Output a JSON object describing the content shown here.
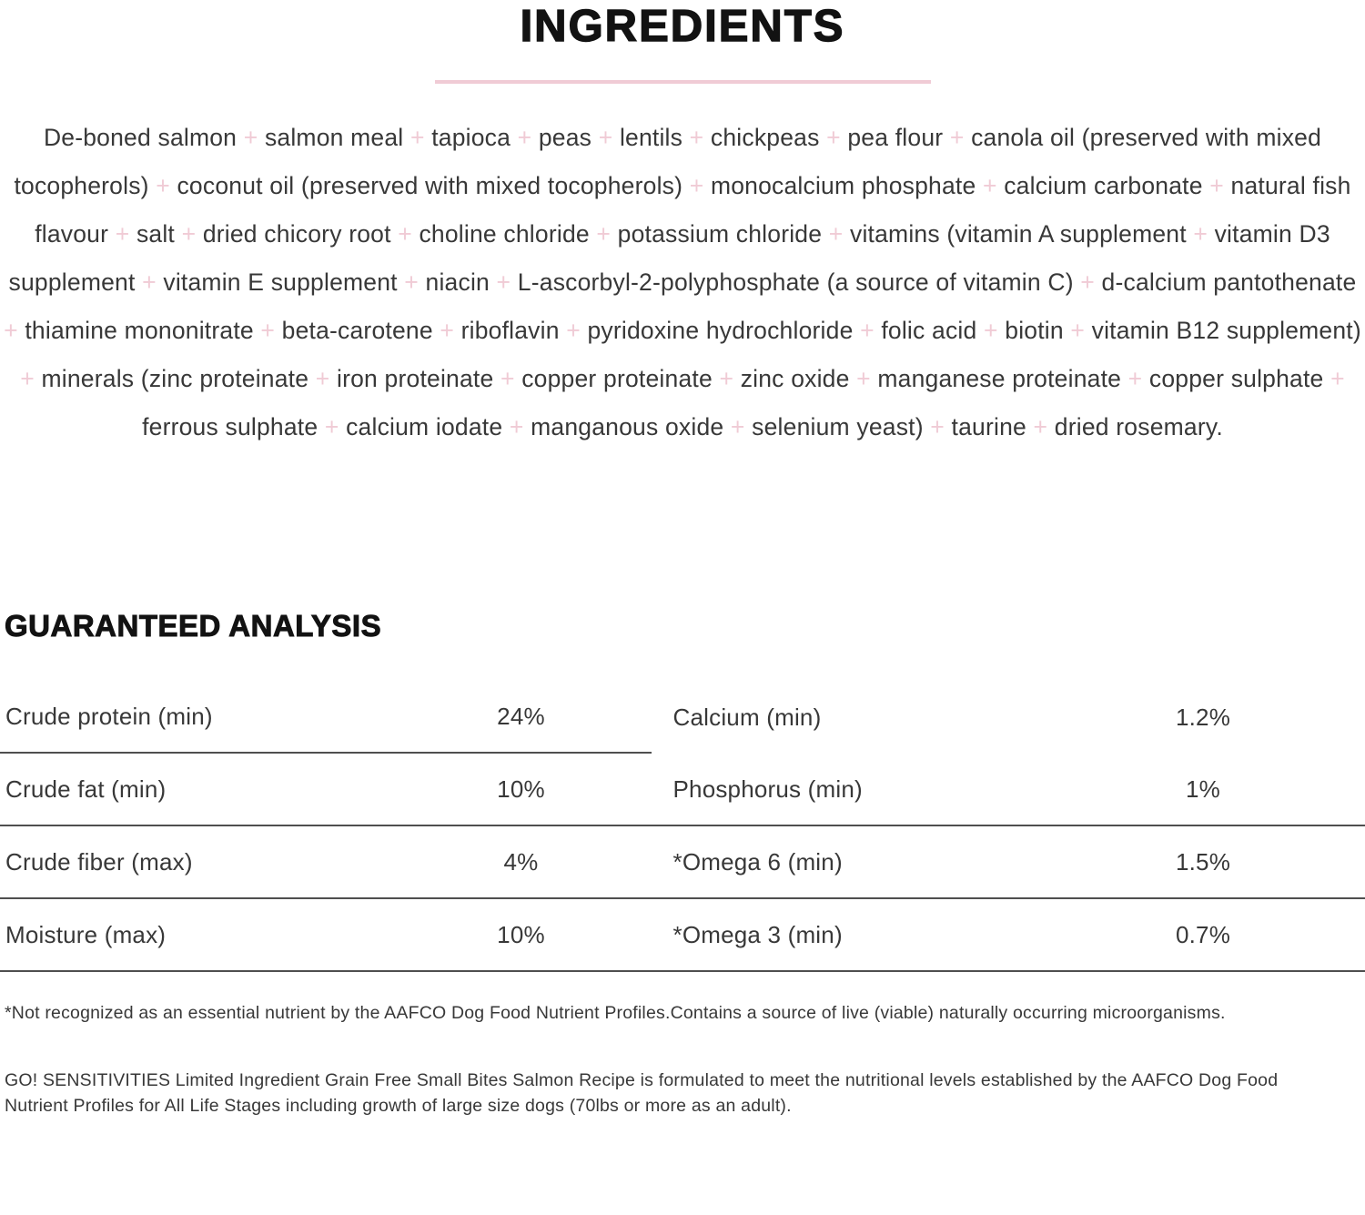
{
  "colors": {
    "accent_pink": "#f0cbd5",
    "text_dark": "#3d3d3d",
    "heading": "#121212",
    "divider": "#4f4f4f"
  },
  "header": {
    "title": "INGREDIENTS"
  },
  "ingredients": {
    "separator": "+",
    "items": [
      "De-boned salmon",
      "salmon meal",
      "tapioca",
      "peas",
      "lentils",
      "chickpeas",
      "pea flour",
      "canola oil (preserved with mixed tocopherols)",
      "coconut oil (preserved with mixed tocopherols)",
      "monocalcium phosphate",
      "calcium carbonate",
      "natural fish flavour",
      "salt",
      "dried chicory root",
      "choline chloride",
      "potassium chloride",
      "vitamins (vitamin A supplement",
      "vitamin D3 supplement",
      "vitamin E supplement",
      "niacin",
      "L-ascorbyl-2-polyphosphate (a source of vitamin C)",
      "d-calcium pantothenate",
      "thiamine mononitrate",
      "beta-carotene",
      "riboflavin",
      "pyridoxine hydrochloride",
      "folic acid",
      "biotin",
      "vitamin B12 supplement)",
      "minerals (zinc proteinate",
      "iron proteinate",
      "copper proteinate",
      "zinc oxide",
      "manganese proteinate",
      "copper sulphate",
      "ferrous sulphate",
      "calcium iodate",
      "manganous oxide",
      "selenium yeast)",
      "taurine",
      "dried rosemary."
    ]
  },
  "analysis": {
    "title": "GUARANTEED ANALYSIS",
    "rows": [
      {
        "cells": [
          {
            "label": "Crude protein (min)",
            "value": "24%"
          },
          {
            "label": "Calcium (min)",
            "value": "1.2%"
          }
        ]
      },
      {
        "cells": [
          {
            "label": "Crude fat (min)",
            "value": "10%"
          },
          {
            "label": "Phosphorus (min)",
            "value": "1%"
          }
        ]
      },
      {
        "cells": [
          {
            "label": "Crude fiber (max)",
            "value": "4%"
          },
          {
            "label": "*Omega 6 (min)",
            "value": "1.5%"
          }
        ]
      },
      {
        "cells": [
          {
            "label": "Moisture (max)",
            "value": "10%"
          },
          {
            "label": "*Omega 3 (min)",
            "value": "0.7%"
          }
        ]
      }
    ]
  },
  "footnotes": {
    "aafco": "*Not recognized as an essential nutrient by the AAFCO Dog Food Nutrient Profiles.Contains a source of live (viable) naturally occurring microorganisms.",
    "formulation": "GO! SENSITIVITIES Limited Ingredient Grain Free Small Bites Salmon Recipe is formulated to meet the nutritional levels established by the AAFCO Dog Food Nutrient Profiles for All Life Stages including growth of large size dogs (70lbs or more as an adult)."
  }
}
